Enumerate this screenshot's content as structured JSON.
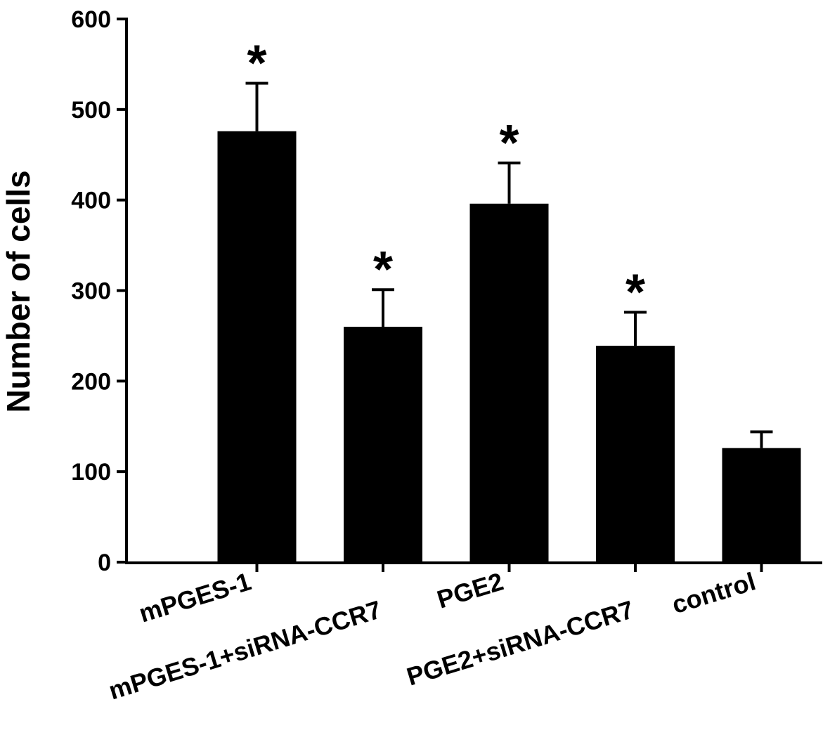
{
  "chart_data": {
    "type": "bar",
    "title": "",
    "xlabel": "",
    "ylabel": "Number of cells",
    "ylim": [
      0,
      600
    ],
    "yticks": [
      0,
      100,
      200,
      300,
      400,
      500,
      600
    ],
    "categories": [
      "mPGES-1",
      "mPGES-1+siRNA-CCR7",
      "PGE2",
      "PGE2+siRNA-CCR7",
      "control"
    ],
    "values": [
      476,
      260,
      396,
      239,
      126
    ],
    "errors": [
      53,
      41,
      45,
      37,
      18
    ],
    "significance": [
      "*",
      "*",
      "*",
      "*",
      ""
    ],
    "bar_color": "#000000",
    "grid": false,
    "legend": "none"
  }
}
